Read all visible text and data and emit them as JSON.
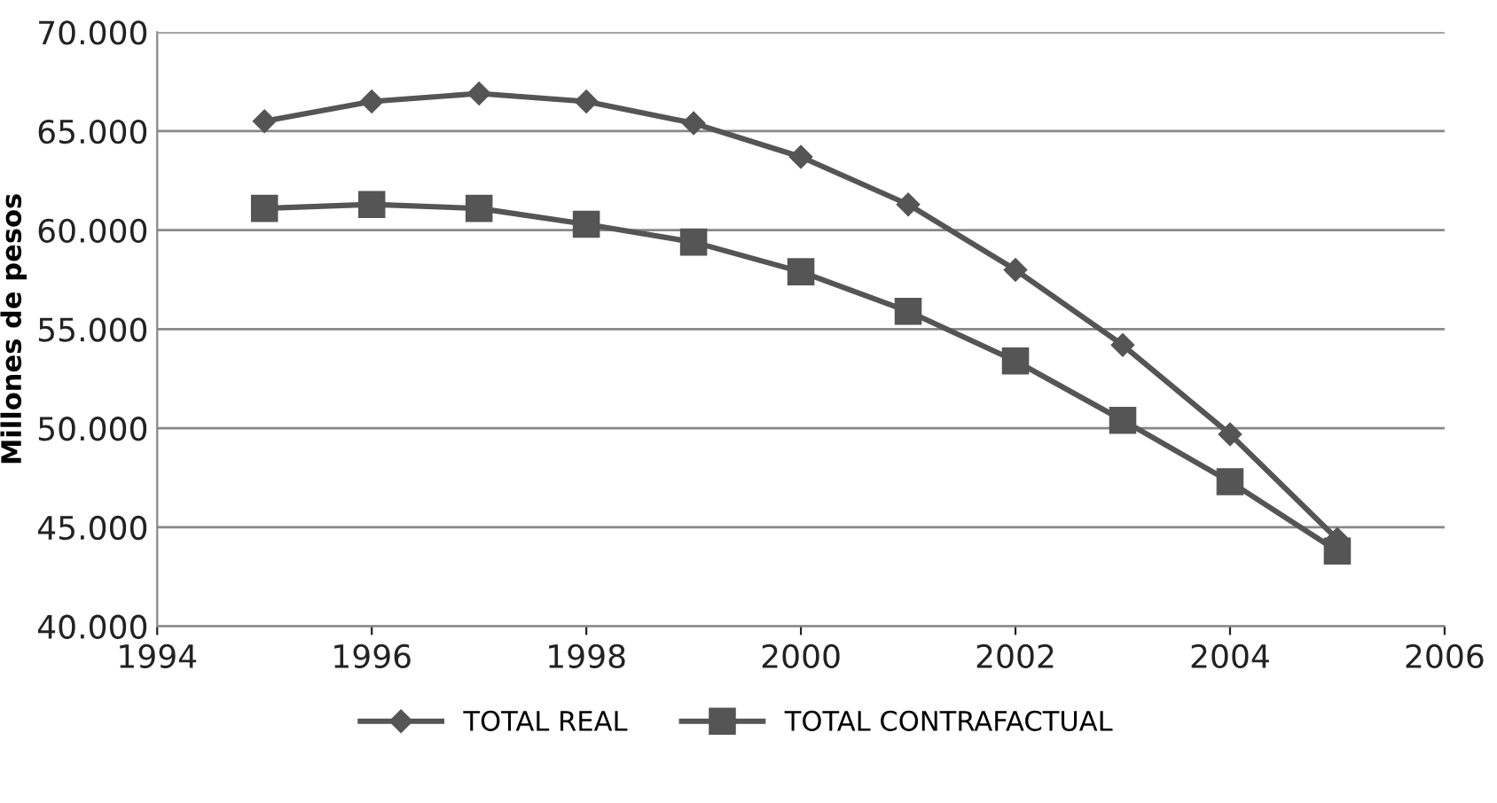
{
  "chart_data": {
    "type": "line",
    "ylabel": "Millones de pesos",
    "x": [
      1995,
      1996,
      1997,
      1998,
      1999,
      2000,
      2001,
      2002,
      2003,
      2004,
      2005
    ],
    "series": [
      {
        "name": "TOTAL REAL",
        "color": "#555555",
        "marker": "diamond",
        "values": [
          65500,
          66500,
          66900,
          66500,
          65400,
          63700,
          61300,
          58000,
          54200,
          49700,
          44400
        ]
      },
      {
        "name": "TOTAL CONTRAFACTUAL",
        "color": "#555555",
        "marker": "square",
        "values": [
          61100,
          61300,
          61100,
          60300,
          59400,
          57900,
          55900,
          53400,
          50400,
          47300,
          43800
        ]
      }
    ],
    "xlim": [
      1994,
      2006
    ],
    "xticks": [
      1994,
      1996,
      1998,
      2000,
      2002,
      2004,
      2006
    ],
    "ylim": [
      40000,
      70000
    ],
    "yticks": [
      {
        "value": 40000,
        "label": "40.000"
      },
      {
        "value": 45000,
        "label": "45.000"
      },
      {
        "value": 50000,
        "label": "50.000"
      },
      {
        "value": 55000,
        "label": "55.000"
      },
      {
        "value": 60000,
        "label": "60.000"
      },
      {
        "value": 65000,
        "label": "65.000"
      },
      {
        "value": 70000,
        "label": "70.000"
      }
    ],
    "grid": "y",
    "legend": "bottom",
    "line_style": "solid"
  }
}
